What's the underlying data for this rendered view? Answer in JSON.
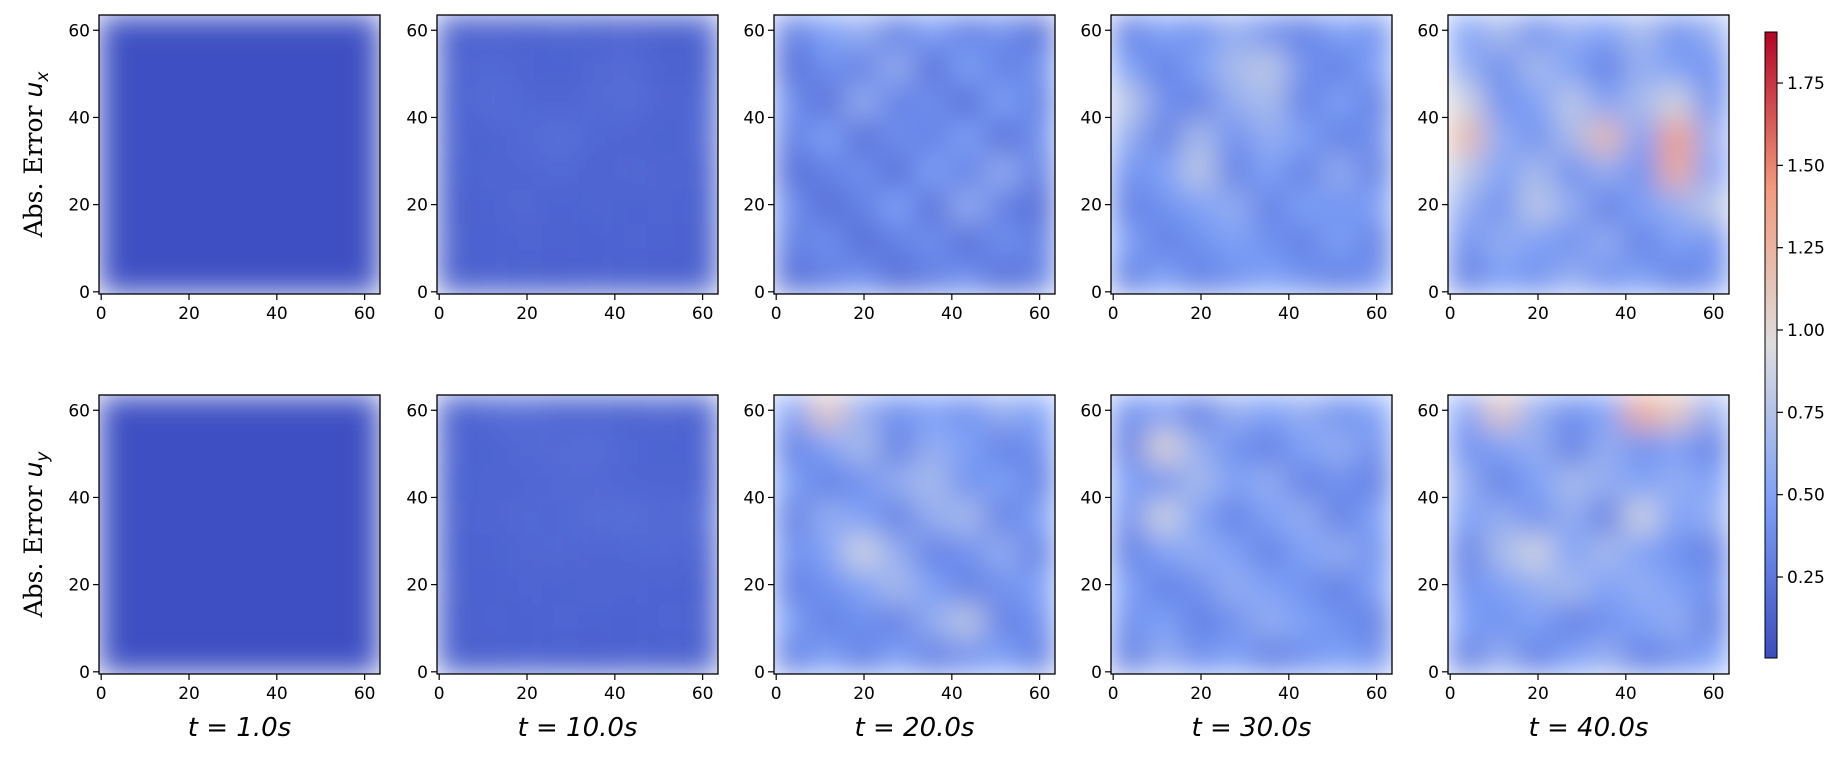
{
  "chart_data": {
    "type": "heatmap",
    "row_labels": [
      {
        "text": "Abs. Error",
        "var": "u",
        "sub": "x"
      },
      {
        "text": "Abs. Error",
        "var": "u",
        "sub": "y"
      }
    ],
    "col_labels": [
      "t = 1.0s",
      "t = 10.0s",
      "t = 20.0s",
      "t = 30.0s",
      "t = 40.0s"
    ],
    "xlim": [
      -0.5,
      63.5
    ],
    "ylim": [
      -0.5,
      63.5
    ],
    "xticks": [
      0,
      20,
      40,
      60
    ],
    "yticks": [
      0,
      20,
      40,
      60
    ],
    "colormap": "coolwarm",
    "clim": [
      0.004,
      1.905
    ],
    "cticks": [
      0.25,
      {
        "value": 0.5,
        "label": "0.50"
      },
      0.75,
      {
        "value": 1.0,
        "label": "1.00"
      },
      1.25,
      {
        "value": 1.5,
        "label": "1.50"
      },
      1.75
    ],
    "panels": [
      {
        "values": [
          [
            0.02,
            0.02,
            0.02,
            0.02,
            0.02,
            0.02,
            0.02,
            0.02
          ],
          [
            0.02,
            0.02,
            0.02,
            0.02,
            0.02,
            0.02,
            0.02,
            0.02
          ],
          [
            0.02,
            0.02,
            0.02,
            0.02,
            0.02,
            0.02,
            0.02,
            0.02
          ],
          [
            0.02,
            0.02,
            0.02,
            0.02,
            0.02,
            0.02,
            0.02,
            0.02
          ],
          [
            0.02,
            0.02,
            0.02,
            0.02,
            0.02,
            0.02,
            0.02,
            0.02
          ],
          [
            0.02,
            0.02,
            0.02,
            0.02,
            0.02,
            0.02,
            0.02,
            0.02
          ],
          [
            0.02,
            0.02,
            0.02,
            0.02,
            0.02,
            0.02,
            0.02,
            0.02
          ],
          [
            0.02,
            0.02,
            0.02,
            0.02,
            0.02,
            0.02,
            0.02,
            0.02
          ]
        ]
      },
      {
        "values": [
          [
            0.12,
            0.15,
            0.13,
            0.16,
            0.14,
            0.15,
            0.12,
            0.14
          ],
          [
            0.14,
            0.18,
            0.15,
            0.13,
            0.17,
            0.19,
            0.14,
            0.13
          ],
          [
            0.13,
            0.2,
            0.16,
            0.15,
            0.18,
            0.2,
            0.15,
            0.16
          ],
          [
            0.15,
            0.14,
            0.18,
            0.22,
            0.16,
            0.15,
            0.13,
            0.17
          ],
          [
            0.13,
            0.16,
            0.15,
            0.18,
            0.14,
            0.17,
            0.16,
            0.14
          ],
          [
            0.12,
            0.14,
            0.17,
            0.13,
            0.16,
            0.14,
            0.15,
            0.13
          ],
          [
            0.14,
            0.13,
            0.15,
            0.14,
            0.13,
            0.15,
            0.14,
            0.12
          ],
          [
            0.12,
            0.14,
            0.13,
            0.12,
            0.14,
            0.13,
            0.12,
            0.13
          ]
        ]
      },
      {
        "values": [
          [
            0.3,
            0.5,
            0.6,
            0.3,
            0.5,
            0.3,
            0.4,
            0.2
          ],
          [
            0.2,
            0.4,
            0.3,
            0.6,
            0.2,
            0.5,
            0.3,
            0.4
          ],
          [
            0.4,
            0.2,
            0.6,
            0.3,
            0.4,
            0.2,
            0.5,
            0.3
          ],
          [
            0.3,
            0.5,
            0.2,
            0.4,
            0.3,
            0.5,
            0.2,
            0.4
          ],
          [
            0.2,
            0.3,
            0.4,
            0.2,
            0.5,
            0.3,
            0.6,
            0.3
          ],
          [
            0.4,
            0.2,
            0.3,
            0.5,
            0.2,
            0.6,
            0.3,
            0.2
          ],
          [
            0.3,
            0.4,
            0.2,
            0.3,
            0.4,
            0.2,
            0.4,
            0.3
          ],
          [
            0.2,
            0.3,
            0.4,
            0.2,
            0.3,
            0.4,
            0.2,
            0.3
          ]
        ]
      },
      {
        "values": [
          [
            0.3,
            0.5,
            0.4,
            0.6,
            0.4,
            0.3,
            0.5,
            0.4
          ],
          [
            0.5,
            0.3,
            0.5,
            0.7,
            0.8,
            0.4,
            0.3,
            0.5
          ],
          [
            0.8,
            0.4,
            0.3,
            0.6,
            0.7,
            0.3,
            0.5,
            0.3
          ],
          [
            0.6,
            0.3,
            0.7,
            0.4,
            0.6,
            0.5,
            0.3,
            0.4
          ],
          [
            0.4,
            0.5,
            0.8,
            0.3,
            0.5,
            0.3,
            0.6,
            0.3
          ],
          [
            0.3,
            0.4,
            0.5,
            0.6,
            0.3,
            0.5,
            0.4,
            0.5
          ],
          [
            0.5,
            0.3,
            0.4,
            0.5,
            0.4,
            0.3,
            0.5,
            0.3
          ],
          [
            0.3,
            0.5,
            0.3,
            0.4,
            0.5,
            0.4,
            0.3,
            0.4
          ]
        ]
      },
      {
        "values": [
          [
            0.5,
            0.7,
            0.4,
            0.6,
            0.5,
            0.7,
            0.4,
            0.6
          ],
          [
            0.6,
            0.4,
            0.7,
            0.5,
            0.3,
            0.6,
            0.5,
            0.4
          ],
          [
            0.9,
            0.4,
            0.5,
            0.8,
            0.5,
            0.7,
            0.9,
            0.4
          ],
          [
            1.2,
            0.6,
            0.4,
            0.7,
            1.2,
            0.5,
            1.4,
            0.6
          ],
          [
            0.8,
            0.5,
            0.7,
            0.4,
            0.6,
            0.4,
            1.3,
            0.5
          ],
          [
            0.6,
            0.4,
            0.8,
            0.6,
            0.3,
            0.5,
            0.6,
            0.8
          ],
          [
            0.4,
            0.6,
            0.5,
            0.4,
            0.6,
            0.3,
            0.5,
            0.4
          ],
          [
            0.3,
            0.5,
            0.4,
            0.6,
            0.4,
            0.5,
            0.3,
            0.4
          ]
        ]
      },
      {
        "values": [
          [
            0.02,
            0.02,
            0.02,
            0.02,
            0.02,
            0.02,
            0.02,
            0.02
          ],
          [
            0.02,
            0.02,
            0.02,
            0.02,
            0.02,
            0.02,
            0.02,
            0.02
          ],
          [
            0.02,
            0.02,
            0.02,
            0.02,
            0.02,
            0.02,
            0.02,
            0.02
          ],
          [
            0.02,
            0.02,
            0.02,
            0.02,
            0.02,
            0.02,
            0.02,
            0.02
          ],
          [
            0.02,
            0.02,
            0.02,
            0.02,
            0.02,
            0.02,
            0.02,
            0.02
          ],
          [
            0.02,
            0.02,
            0.02,
            0.02,
            0.02,
            0.02,
            0.02,
            0.02
          ],
          [
            0.02,
            0.02,
            0.02,
            0.02,
            0.02,
            0.02,
            0.02,
            0.02
          ],
          [
            0.02,
            0.02,
            0.02,
            0.02,
            0.02,
            0.02,
            0.02,
            0.02
          ]
        ]
      },
      {
        "values": [
          [
            0.13,
            0.18,
            0.2,
            0.15,
            0.16,
            0.14,
            0.17,
            0.13
          ],
          [
            0.15,
            0.14,
            0.17,
            0.19,
            0.2,
            0.16,
            0.14,
            0.15
          ],
          [
            0.13,
            0.16,
            0.15,
            0.18,
            0.17,
            0.15,
            0.16,
            0.14
          ],
          [
            0.14,
            0.15,
            0.17,
            0.16,
            0.2,
            0.21,
            0.17,
            0.2
          ],
          [
            0.13,
            0.14,
            0.16,
            0.17,
            0.15,
            0.16,
            0.18,
            0.15
          ],
          [
            0.14,
            0.13,
            0.15,
            0.14,
            0.16,
            0.15,
            0.14,
            0.13
          ],
          [
            0.12,
            0.14,
            0.13,
            0.15,
            0.14,
            0.13,
            0.15,
            0.14
          ],
          [
            0.13,
            0.12,
            0.14,
            0.13,
            0.12,
            0.14,
            0.13,
            0.12
          ]
        ]
      },
      {
        "values": [
          [
            0.5,
            1.1,
            0.6,
            0.4,
            0.5,
            0.4,
            0.6,
            0.5
          ],
          [
            0.3,
            0.5,
            0.7,
            0.3,
            0.6,
            0.5,
            0.3,
            0.4
          ],
          [
            0.5,
            0.3,
            0.4,
            0.6,
            0.7,
            0.4,
            0.5,
            0.3
          ],
          [
            0.3,
            0.6,
            0.5,
            0.3,
            0.6,
            0.7,
            0.3,
            0.5
          ],
          [
            0.4,
            0.5,
            0.9,
            0.6,
            0.3,
            0.4,
            0.6,
            0.3
          ],
          [
            0.3,
            0.4,
            0.5,
            0.7,
            0.5,
            0.3,
            0.4,
            0.5
          ],
          [
            0.5,
            0.3,
            0.4,
            0.3,
            0.6,
            0.8,
            0.3,
            0.4
          ],
          [
            0.3,
            0.5,
            0.3,
            0.5,
            0.3,
            0.4,
            0.5,
            0.3
          ]
        ]
      },
      {
        "values": [
          [
            0.4,
            0.5,
            0.3,
            0.6,
            0.5,
            0.6,
            0.4,
            0.5
          ],
          [
            0.3,
            1.0,
            0.6,
            0.4,
            0.3,
            0.5,
            0.6,
            0.4
          ],
          [
            0.5,
            0.4,
            0.7,
            0.5,
            0.6,
            0.3,
            0.4,
            0.3
          ],
          [
            0.4,
            0.9,
            0.5,
            0.3,
            0.5,
            0.6,
            0.3,
            0.5
          ],
          [
            0.3,
            0.5,
            0.6,
            0.5,
            0.3,
            0.5,
            0.6,
            0.4
          ],
          [
            0.5,
            0.3,
            0.4,
            0.6,
            0.5,
            0.4,
            0.3,
            0.5
          ],
          [
            0.4,
            0.5,
            0.3,
            0.4,
            0.6,
            0.5,
            0.4,
            0.3
          ],
          [
            0.3,
            0.6,
            0.4,
            0.5,
            0.3,
            0.4,
            0.5,
            0.4
          ]
        ]
      },
      {
        "values": [
          [
            0.5,
            1.1,
            0.6,
            0.4,
            0.5,
            1.3,
            1.1,
            0.6
          ],
          [
            0.4,
            0.5,
            0.6,
            0.3,
            0.6,
            0.4,
            0.5,
            0.3
          ],
          [
            0.6,
            0.3,
            0.5,
            0.7,
            0.6,
            0.5,
            0.6,
            0.5
          ],
          [
            0.5,
            0.6,
            0.4,
            0.6,
            0.3,
            0.9,
            0.5,
            0.6
          ],
          [
            0.3,
            0.7,
            0.9,
            0.5,
            0.7,
            0.5,
            0.4,
            0.3
          ],
          [
            0.4,
            0.5,
            0.6,
            0.7,
            0.5,
            0.6,
            0.5,
            0.4
          ],
          [
            0.5,
            0.4,
            0.5,
            0.3,
            0.4,
            0.5,
            0.6,
            0.3
          ],
          [
            0.3,
            0.6,
            0.3,
            0.5,
            0.6,
            0.3,
            0.4,
            0.5
          ]
        ]
      }
    ]
  }
}
